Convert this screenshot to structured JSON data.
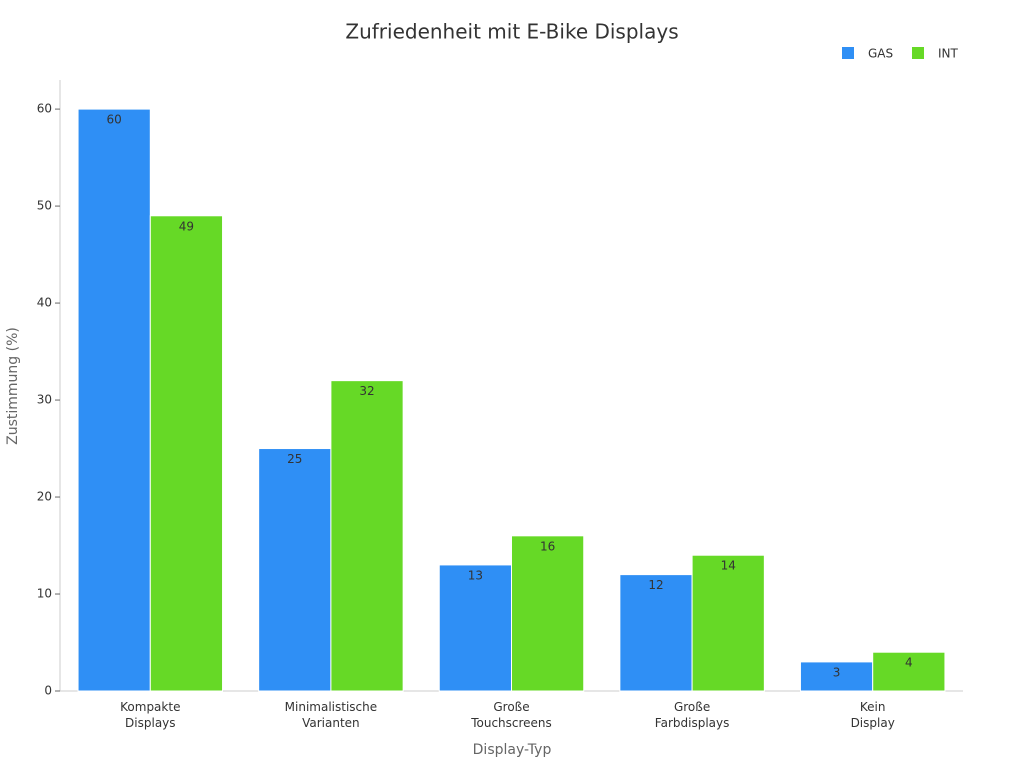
{
  "chart_data": {
    "type": "bar",
    "title": "Zufriedenheit mit E-Bike Displays",
    "x_label": "Display-Typ",
    "y_label": "Zustimmung (%)",
    "categories": [
      "Kompakte\nDisplays",
      "Minimalistische\nVarianten",
      "Große\nTouchscreens",
      "Große\nFarbdisplays",
      "Kein\nDisplay"
    ],
    "series": [
      {
        "name": "GAS",
        "color": "#2f8ff5",
        "values": [
          60,
          25,
          13,
          12,
          3
        ]
      },
      {
        "name": "INT",
        "color": "#66d926",
        "values": [
          49,
          32,
          16,
          14,
          4
        ]
      }
    ],
    "ylim": [
      0,
      63
    ],
    "yticks": [
      0,
      10,
      20,
      30,
      40,
      50,
      60
    ],
    "grid": false,
    "legend": "top-right"
  }
}
